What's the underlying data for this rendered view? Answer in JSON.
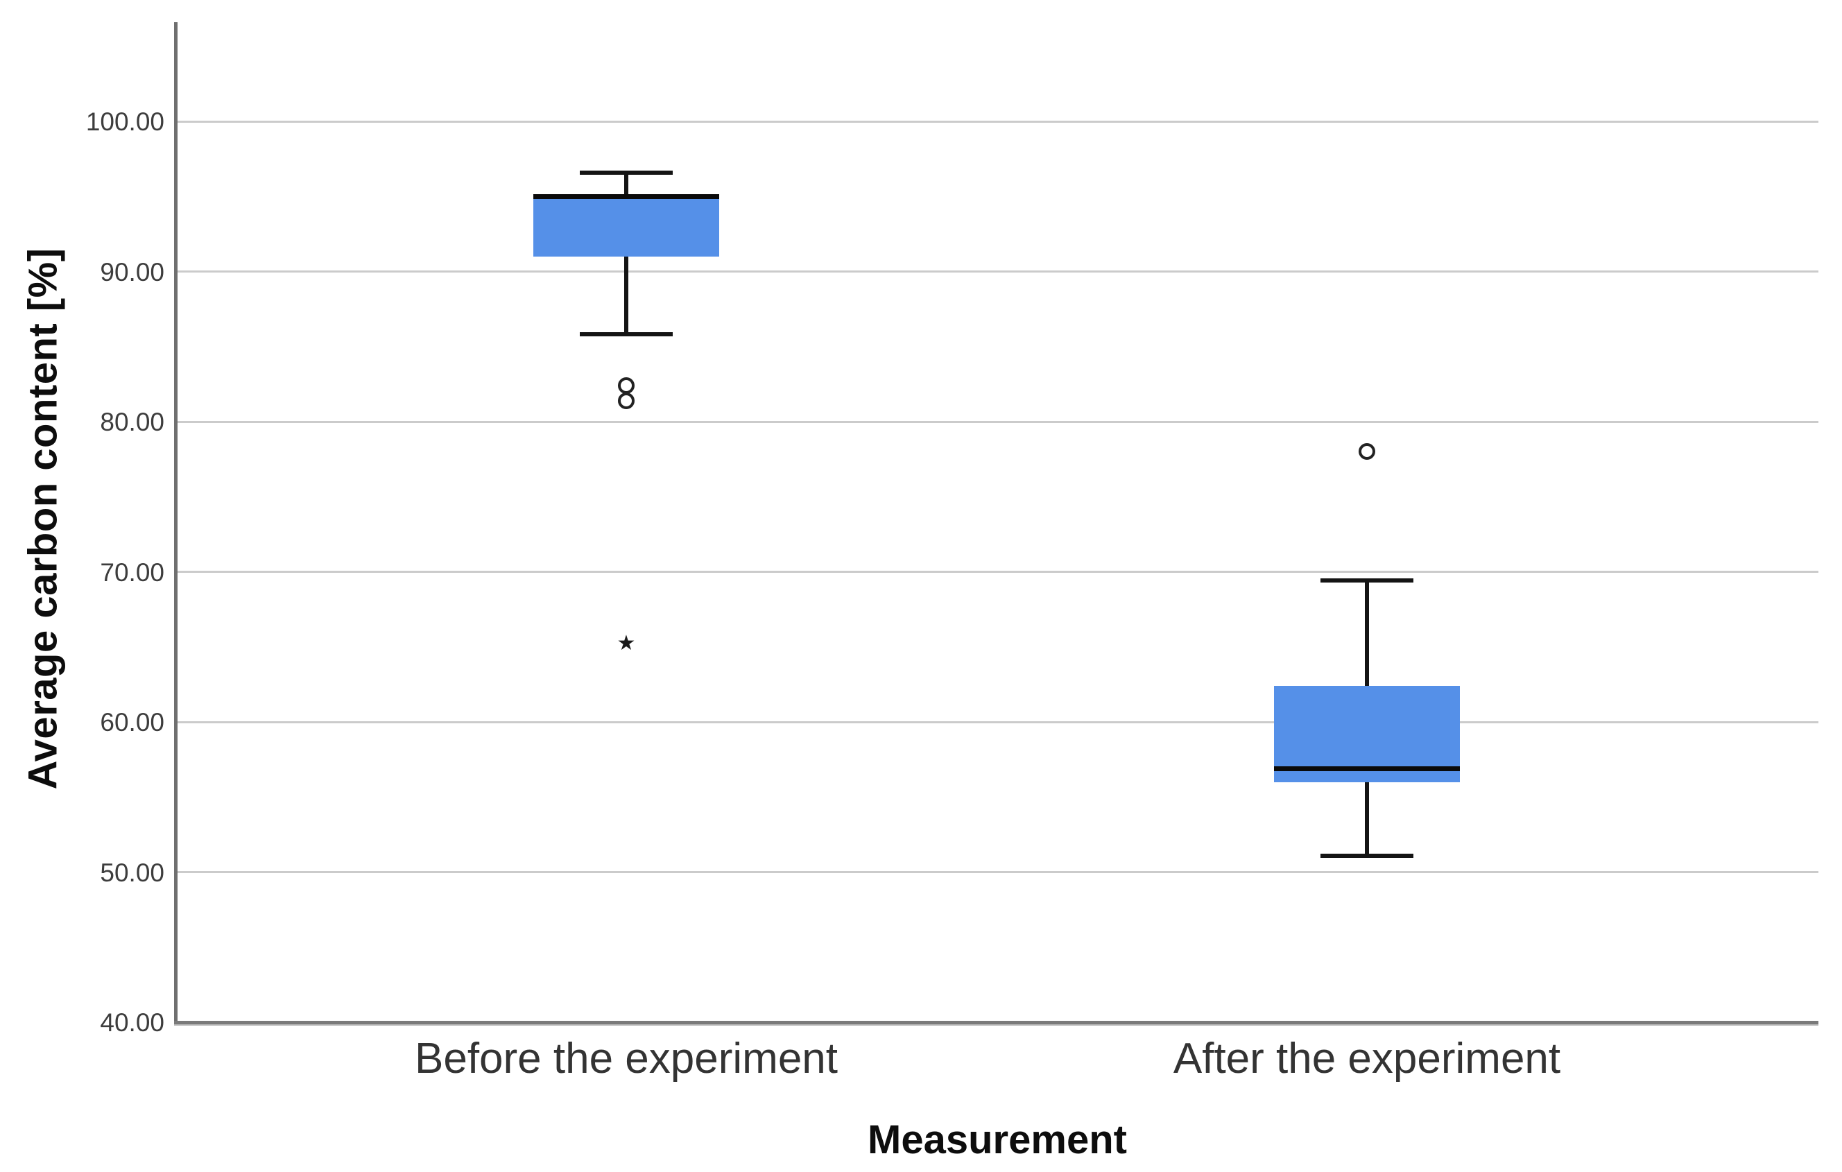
{
  "chart_data": {
    "type": "boxplot",
    "title": "",
    "xlabel": "Measurement",
    "ylabel": "Average carbon content [%]",
    "categories": [
      "Before the experiment",
      "After the experiment"
    ],
    "y_axis": {
      "min": 40,
      "max": 100,
      "tick_step": 10,
      "tick_labels": [
        "100.00",
        "90.00",
        "80.00",
        "70.00",
        "60.00",
        "50.00",
        "40.00"
      ],
      "grid": true
    },
    "series": [
      {
        "category": "Before the experiment",
        "whisker_low": 85.8,
        "q1": 91.0,
        "median": 95.0,
        "q3": 95.1,
        "whisker_high": 96.6,
        "outliers": [
          {
            "value": 82.4,
            "marker": "circle"
          },
          {
            "value": 81.4,
            "marker": "circle"
          },
          {
            "value": 65.2,
            "marker": "star"
          }
        ]
      },
      {
        "category": "After the experiment",
        "whisker_low": 51.1,
        "q1": 56.0,
        "median": 56.9,
        "q3": 62.4,
        "whisker_high": 69.4,
        "outliers": [
          {
            "value": 78.0,
            "marker": "circle"
          }
        ]
      }
    ],
    "legend": null
  },
  "style": {
    "box_fill_color": "#5590E8",
    "line_color": "#141414",
    "gridline_color": "#cbcbcb",
    "axis_color": "#6f6f6f"
  }
}
